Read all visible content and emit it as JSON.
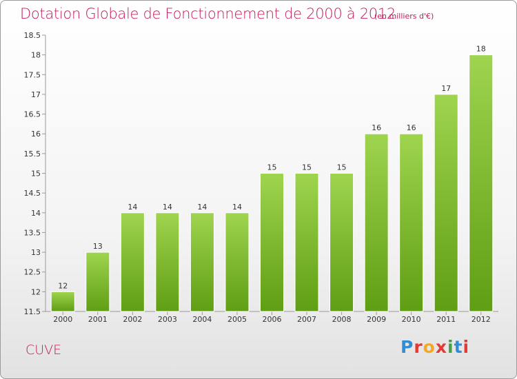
{
  "header": {
    "title": "Dotation Globale de Fonctionnement de 2000 à 2012",
    "subtitle": "(en milliers d'€)"
  },
  "footer": {
    "commune": "CUVE",
    "logo": "Proxiti",
    "logo_colors": [
      "#2e8fd6",
      "#e53935",
      "#f5a623",
      "#e53935",
      "#43a047",
      "#2e8fd6",
      "#e53935"
    ]
  },
  "colors": {
    "title": "#c2185b",
    "bar_top": "#9fd44f",
    "bar_bottom": "#5f9e13"
  },
  "chart_data": {
    "type": "bar",
    "categories": [
      "2000",
      "2001",
      "2002",
      "2003",
      "2004",
      "2005",
      "2006",
      "2007",
      "2008",
      "2009",
      "2010",
      "2011",
      "2012"
    ],
    "values": [
      12,
      13,
      14,
      14,
      14,
      14,
      15,
      15,
      15,
      16,
      16,
      17,
      18
    ],
    "value_labels": [
      "12",
      "13",
      "14",
      "14",
      "14",
      "14",
      "15",
      "15",
      "15",
      "16",
      "16",
      "17",
      "18"
    ],
    "title": "Dotation Globale de Fonctionnement de 2000 à 2012",
    "xlabel": "",
    "ylabel": "",
    "ylim": [
      11.5,
      18.5
    ],
    "yticks": [
      11.5,
      12,
      12.5,
      13,
      13.5,
      14,
      14.5,
      15,
      15.5,
      16,
      16.5,
      17,
      17.5,
      18,
      18.5
    ],
    "ytick_labels": [
      "11.5",
      "12",
      "12.5",
      "13",
      "13.5",
      "14",
      "14.5",
      "15",
      "15.5",
      "16",
      "16.5",
      "17",
      "17.5",
      "18",
      "18.5"
    ],
    "grid": false,
    "legend": "none"
  }
}
